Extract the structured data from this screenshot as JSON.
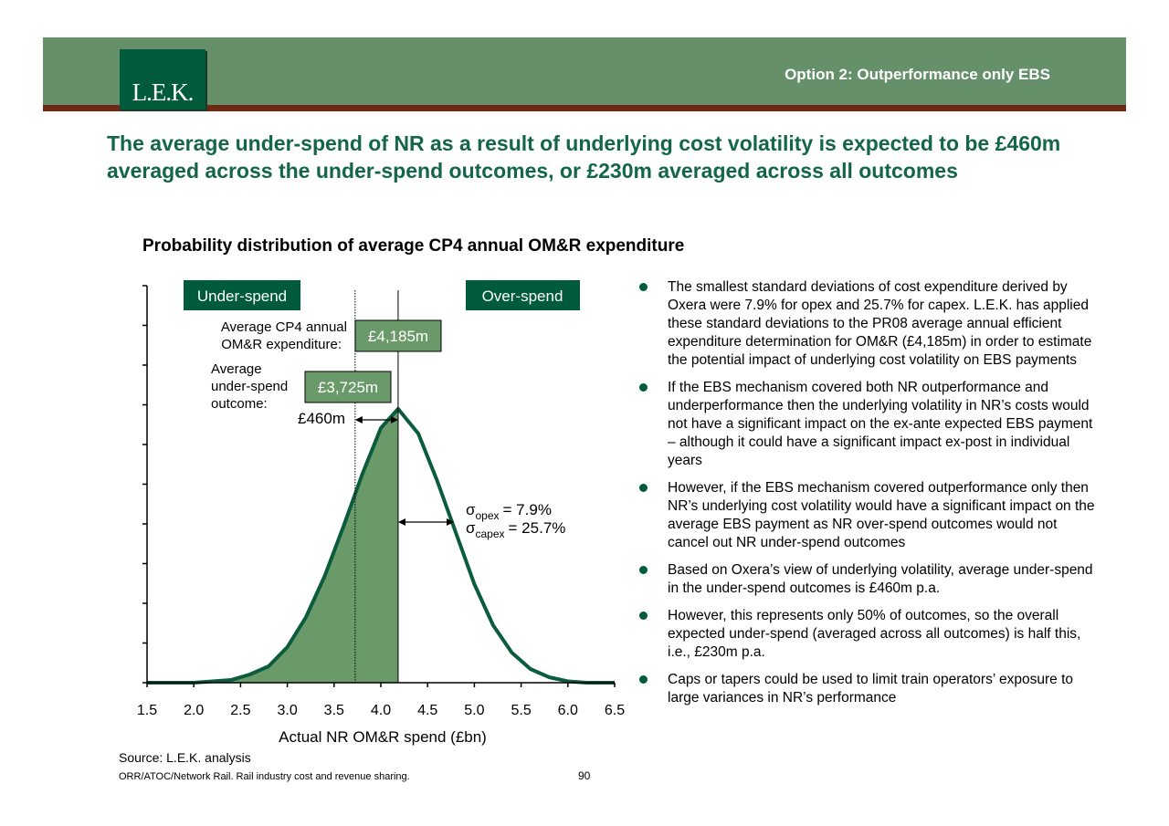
{
  "header": {
    "logo": "L.E.K.",
    "tag": "Option 2: Outperformance only EBS"
  },
  "headline": "The average under-spend of NR as a result of underlying cost volatility is expected to be £460m averaged across the under-spend outcomes, or £230m averaged across all outcomes",
  "colors": {
    "band": "#66906a",
    "rule": "#6d2b16",
    "dark_green": "#005a3c",
    "fill": "#6a9a6a",
    "curve": "#0b5c3c"
  },
  "chart_data": {
    "type": "area",
    "title": "Probability distribution of average CP4 annual OM&R expenditure",
    "xlabel": "Actual NR OM&R spend (£bn)",
    "ylabel": "",
    "xlim": [
      1.5,
      6.5
    ],
    "x_ticks": [
      "1.5",
      "2.0",
      "2.5",
      "3.0",
      "3.5",
      "4.0",
      "4.5",
      "5.0",
      "5.5",
      "6.0",
      "6.5"
    ],
    "y_ticks_count": 11,
    "distribution": {
      "mean": 4.185,
      "shaded_upper": 4.185,
      "under_spend_mean": 3.725
    },
    "series": [
      {
        "x": [
          1.5,
          1.8,
          2.0,
          2.2,
          2.4,
          2.6,
          2.8,
          3.0,
          3.2,
          3.4,
          3.6,
          3.8,
          4.0,
          4.185,
          4.4,
          4.6,
          4.8,
          5.0,
          5.2,
          5.4,
          5.6,
          5.8,
          6.0,
          6.2,
          6.5
        ],
        "y": [
          0.0,
          0.0,
          0.0,
          0.005,
          0.01,
          0.03,
          0.06,
          0.13,
          0.24,
          0.39,
          0.57,
          0.76,
          0.93,
          1.0,
          0.91,
          0.74,
          0.55,
          0.36,
          0.21,
          0.11,
          0.05,
          0.02,
          0.005,
          0.0,
          0.0
        ]
      }
    ],
    "labels": {
      "under_spend": "Under-spend",
      "over_spend": "Over-spend",
      "avg_label": "Average CP4 annual OM&R expenditure:",
      "avg_label_line1": "Average CP4 annual",
      "avg_label_line2": "OM&R expenditure:",
      "avg_value": "£4,185m",
      "under_label_line1": "Average",
      "under_label_line2": "under-spend",
      "under_label_line3": "outcome:",
      "under_value": "£3,725m",
      "gap": "£460m",
      "sigma_opex_sub": "opex",
      "sigma_opex_val": "= 7.9%",
      "sigma_capex_sub": "capex",
      "sigma_capex_val": "= 25.7%"
    }
  },
  "bullets": [
    "The smallest standard deviations of cost expenditure derived by Oxera were 7.9% for opex and 25.7% for capex. L.E.K. has applied these standard deviations to the PR08 average annual efficient expenditure determination for OM&R (£4,185m) in order to estimate the potential impact of underlying cost volatility on EBS payments",
    "If the EBS mechanism covered both NR outperformance and underperformance then the underlying volatility in NR’s costs would not have a significant impact on the ex-ante expected EBS payment – although it could have a significant impact ex-post in individual years",
    "However, if the EBS mechanism covered outperformance only then NR’s underlying cost volatility would have a significant impact on the average EBS payment as NR over-spend outcomes would not cancel out NR under-spend outcomes",
    "Based on Oxera’s view of underlying volatility, average under-spend in the under-spend outcomes is £460m p.a.",
    "However, this represents only 50% of outcomes, so the overall expected under-spend (averaged across all outcomes) is half this, i.e., £230m p.a.",
    "Caps or tapers could be used to limit train operators’ exposure to large variances in NR’s performance"
  ],
  "source": "Source: L.E.K. analysis",
  "footer": "ORR/ATOC/Network Rail.  Rail industry cost and revenue sharing.",
  "page_number": "90"
}
